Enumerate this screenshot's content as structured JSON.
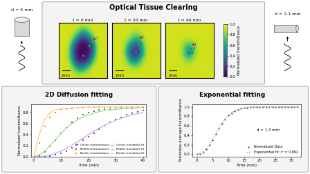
{
  "clearing": {
    "title": "Optical Tissue Clearing",
    "left_label": "d = 4 mm",
    "right_label": "d = 2.1 mm",
    "colorbar": {
      "label": "Normalized transmittance",
      "range": [
        0.0,
        1.0
      ],
      "ticks": [
        {
          "value": 0.0,
          "label": "0.0"
        },
        {
          "value": 0.2,
          "label": "0.2"
        },
        {
          "value": 0.4,
          "label": "0.4"
        },
        {
          "value": 0.6,
          "label": "0.6"
        },
        {
          "value": 0.8,
          "label": "0.8"
        },
        {
          "value": 1.0,
          "label": "1.0"
        }
      ]
    },
    "frames": [
      {
        "title": "t = 0 min",
        "scale_bar": "2mm",
        "points": [
          {
            "label": "1",
            "x": 8.3,
            "y": 1.8,
            "color": "#d62728"
          },
          {
            "label": "2",
            "x": 7.0,
            "y": 2.8,
            "color": "#2ca02c"
          },
          {
            "label": "3",
            "x": 5.5,
            "y": 4.2,
            "color": "#1f77b4"
          }
        ],
        "cells": [
          [
            0.93,
            0.93,
            0.93,
            0.93,
            0.93,
            0.93,
            0.93,
            0.93,
            0.93,
            0.93,
            0.93,
            0.93
          ],
          [
            0.93,
            0.93,
            0.93,
            0.93,
            0.85,
            0.6,
            0.55,
            0.8,
            0.93,
            0.93,
            0.93,
            0.93
          ],
          [
            0.93,
            0.93,
            0.93,
            0.8,
            0.35,
            0.1,
            0.08,
            0.2,
            0.7,
            0.93,
            0.93,
            0.93
          ],
          [
            0.93,
            0.93,
            0.9,
            0.4,
            0.05,
            0.02,
            0.02,
            0.05,
            0.3,
            0.9,
            0.93,
            0.93
          ],
          [
            0.93,
            0.93,
            0.85,
            0.3,
            0.03,
            0.02,
            0.02,
            0.04,
            0.35,
            0.9,
            0.93,
            0.93
          ],
          [
            0.93,
            0.93,
            0.9,
            0.5,
            0.1,
            0.05,
            0.06,
            0.2,
            0.75,
            0.93,
            0.93,
            0.93
          ],
          [
            0.93,
            0.93,
            0.93,
            0.85,
            0.55,
            0.45,
            0.6,
            0.85,
            0.93,
            0.93,
            0.93,
            0.93
          ],
          [
            0.93,
            0.93,
            0.93,
            0.93,
            0.93,
            0.93,
            0.93,
            0.93,
            0.93,
            0.93,
            0.93,
            0.93
          ]
        ]
      },
      {
        "title": "t = 20 min",
        "scale_bar": "2mm",
        "points": [
          {
            "label": "1",
            "x": 6.5,
            "y": 1.6,
            "color": "#d62728"
          },
          {
            "label": "2",
            "x": 6.0,
            "y": 2.5,
            "color": "#2ca02c"
          },
          {
            "label": "3",
            "x": 5.3,
            "y": 3.6,
            "color": "#1f77b4"
          }
        ],
        "cells": [
          [
            0.93,
            0.93,
            0.93,
            0.93,
            0.93,
            0.93,
            0.93,
            0.93,
            0.93,
            0.93,
            0.93,
            0.93
          ],
          [
            0.93,
            0.93,
            0.93,
            0.93,
            0.93,
            0.88,
            0.88,
            0.93,
            0.93,
            0.93,
            0.93,
            0.93
          ],
          [
            0.93,
            0.93,
            0.93,
            0.93,
            0.8,
            0.6,
            0.6,
            0.85,
            0.93,
            0.93,
            0.93,
            0.93
          ],
          [
            0.93,
            0.93,
            0.93,
            0.75,
            0.4,
            0.2,
            0.25,
            0.6,
            0.9,
            0.93,
            0.93,
            0.93
          ],
          [
            0.93,
            0.93,
            0.93,
            0.7,
            0.25,
            0.1,
            0.15,
            0.55,
            0.9,
            0.93,
            0.93,
            0.93
          ],
          [
            0.93,
            0.93,
            0.93,
            0.85,
            0.6,
            0.45,
            0.55,
            0.85,
            0.93,
            0.93,
            0.93,
            0.93
          ],
          [
            0.93,
            0.93,
            0.93,
            0.93,
            0.93,
            0.88,
            0.9,
            0.93,
            0.93,
            0.93,
            0.93,
            0.93
          ],
          [
            0.93,
            0.93,
            0.93,
            0.93,
            0.93,
            0.93,
            0.93,
            0.93,
            0.93,
            0.93,
            0.93,
            0.93
          ]
        ]
      },
      {
        "title": "t = 40 min",
        "scale_bar": "2mm",
        "points": [
          {
            "label": "1",
            "x": 6.3,
            "y": 2.6,
            "color": "#d62728"
          },
          {
            "label": "2",
            "x": 5.9,
            "y": 3.2,
            "color": "#2ca02c"
          },
          {
            "label": "3",
            "x": 5.4,
            "y": 3.8,
            "color": "#1f77b4"
          }
        ],
        "cells": [
          [
            0.93,
            0.93,
            0.93,
            0.93,
            0.93,
            0.93,
            0.93,
            0.93,
            0.93,
            0.93,
            0.93,
            0.93
          ],
          [
            0.93,
            0.93,
            0.93,
            0.93,
            0.93,
            0.93,
            0.93,
            0.93,
            0.93,
            0.93,
            0.93,
            0.93
          ],
          [
            0.93,
            0.93,
            0.93,
            0.93,
            0.93,
            0.93,
            0.93,
            0.93,
            0.93,
            0.93,
            0.93,
            0.93
          ],
          [
            0.93,
            0.93,
            0.93,
            0.93,
            0.8,
            0.6,
            0.65,
            0.85,
            0.93,
            0.93,
            0.93,
            0.93
          ],
          [
            0.93,
            0.93,
            0.93,
            0.93,
            0.8,
            0.5,
            0.55,
            0.85,
            0.93,
            0.93,
            0.93,
            0.93
          ],
          [
            0.93,
            0.93,
            0.93,
            0.93,
            0.9,
            0.85,
            0.88,
            0.93,
            0.93,
            0.93,
            0.93,
            0.93
          ],
          [
            0.93,
            0.93,
            0.93,
            0.93,
            0.93,
            0.93,
            0.93,
            0.93,
            0.93,
            0.93,
            0.93,
            0.93
          ],
          [
            0.93,
            0.93,
            0.93,
            0.93,
            0.93,
            0.93,
            0.93,
            0.93,
            0.93,
            0.93,
            0.93,
            0.93
          ]
        ]
      }
    ]
  },
  "chart_data": [
    {
      "type": "line",
      "title": "2D Diffusion fitting",
      "x_label": "Time (min)",
      "y_label": "Normalized transmittance",
      "x": [
        0,
        2,
        4,
        6,
        8,
        10,
        12,
        14,
        16,
        18,
        20,
        22,
        24,
        26,
        28,
        30,
        32,
        34,
        36,
        38,
        40
      ],
      "xlim": [
        -1,
        41
      ],
      "xticks": [
        0,
        10,
        20,
        30,
        40
      ],
      "ylim": [
        0,
        0.95
      ],
      "yticks": [
        {
          "value": 0.0,
          "label": "0.0"
        },
        {
          "value": 0.2,
          "label": "0.2"
        },
        {
          "value": 0.4,
          "label": "0.4"
        },
        {
          "value": 0.6,
          "label": "0.6"
        },
        {
          "value": 0.8,
          "label": "0.8"
        }
      ],
      "legend": "lower right",
      "series": [
        {
          "name": "Center transmittance",
          "type": "scatter",
          "marker": "square",
          "color": "#7b3fa0",
          "values": [
            0,
            0,
            0,
            0.01,
            0.03,
            0.06,
            0.1,
            0.16,
            0.22,
            0.3,
            0.36,
            0.43,
            0.5,
            0.56,
            0.62,
            0.67,
            0.72,
            0.76,
            0.79,
            0.82,
            0.84
          ]
        },
        {
          "name": "Middle transmittance",
          "type": "scatter",
          "marker": "square",
          "color": "#2e8b2e",
          "values": [
            0,
            0.02,
            0.08,
            0.18,
            0.3,
            0.42,
            0.53,
            0.62,
            0.7,
            0.76,
            0.8,
            0.83,
            0.85,
            0.86,
            0.87,
            0.87,
            0.88,
            0.88,
            0.88,
            0.89,
            0.89
          ]
        },
        {
          "name": "Border transmittance",
          "type": "scatter",
          "marker": "square",
          "color": "#f28e1c",
          "values": [
            0,
            0.25,
            0.55,
            0.72,
            0.8,
            0.85,
            0.87,
            0.88,
            0.89,
            0.89,
            0.9,
            0.9,
            0.9,
            0.9,
            0.9,
            0.9,
            0.9,
            0.9,
            0.9,
            0.9,
            0.9
          ]
        },
        {
          "name": "Center simulation fit",
          "type": "line",
          "line_style": "solid",
          "color": "#c9a6e3",
          "values": [
            0,
            0,
            0.01,
            0.03,
            0.06,
            0.1,
            0.15,
            0.21,
            0.27,
            0.33,
            0.4,
            0.46,
            0.52,
            0.57,
            0.62,
            0.66,
            0.7,
            0.73,
            0.76,
            0.78,
            0.8
          ]
        },
        {
          "name": "Middle simulation fit",
          "type": "line",
          "line_style": "solid",
          "color": "#9fd89f",
          "values": [
            0,
            0.03,
            0.1,
            0.2,
            0.31,
            0.42,
            0.52,
            0.6,
            0.67,
            0.72,
            0.76,
            0.79,
            0.82,
            0.84,
            0.85,
            0.86,
            0.87,
            0.88,
            0.88,
            0.89,
            0.89
          ]
        },
        {
          "name": "Border simulation fit",
          "type": "line",
          "line_style": "solid",
          "color": "#f9c98a",
          "values": [
            0,
            0.4,
            0.68,
            0.8,
            0.85,
            0.87,
            0.88,
            0.89,
            0.89,
            0.9,
            0.9,
            0.9,
            0.9,
            0.9,
            0.9,
            0.9,
            0.9,
            0.9,
            0.9,
            0.9,
            0.9
          ]
        }
      ]
    },
    {
      "type": "line",
      "title": "Exponential fitting",
      "x_label": "Time (min)",
      "y_label": "Thickness-average transmittance",
      "annotations": [
        "d = 1.3 mm"
      ],
      "x": [
        0,
        1,
        2,
        3,
        4,
        5,
        6,
        7,
        8,
        9,
        10,
        11,
        12,
        13,
        14,
        15,
        16,
        17,
        18,
        19,
        20,
        21,
        22,
        23,
        24,
        25,
        26,
        27,
        28,
        29,
        30,
        31,
        32
      ],
      "xlim": [
        -1.5,
        33
      ],
      "xticks": [
        0,
        5,
        10,
        15,
        20,
        25,
        30
      ],
      "ylim": [
        -0.05,
        1.05
      ],
      "yticks": [
        {
          "value": 0.0,
          "label": "0.0"
        },
        {
          "value": 0.2,
          "label": "0.2"
        },
        {
          "value": 0.4,
          "label": "0.4"
        },
        {
          "value": 0.6,
          "label": "0.6"
        },
        {
          "value": 0.8,
          "label": "0.8"
        },
        {
          "value": 1.0,
          "label": "1.0"
        }
      ],
      "legend": "lower right",
      "series": [
        {
          "name": "Normalized Data",
          "type": "scatter",
          "marker": "circle",
          "color": "#6a2c91",
          "values": [
            0,
            0.01,
            0.04,
            0.1,
            0.19,
            0.3,
            0.42,
            0.54,
            0.65,
            0.74,
            0.82,
            0.87,
            0.91,
            0.94,
            0.96,
            0.975,
            0.985,
            0.99,
            0.994,
            0.996,
            0.998,
            0.999,
            1,
            1,
            1,
            1,
            1,
            1,
            1,
            1,
            1,
            1,
            1
          ]
        },
        {
          "name": "Exponential fit: r² = 0.992",
          "type": "line",
          "line_style": "dotted",
          "color": "#4caf50",
          "values": [
            0,
            0.015,
            0.05,
            0.11,
            0.2,
            0.31,
            0.43,
            0.55,
            0.66,
            0.75,
            0.82,
            0.87,
            0.91,
            0.94,
            0.96,
            0.975,
            0.985,
            0.99,
            0.994,
            0.996,
            0.998,
            0.999,
            1,
            1,
            1,
            1,
            1,
            1,
            1,
            1,
            1,
            1,
            1
          ]
        }
      ]
    }
  ]
}
